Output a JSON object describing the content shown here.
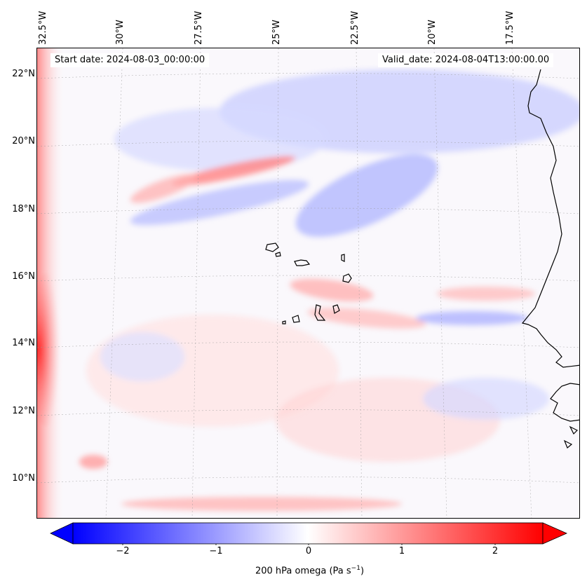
{
  "header": {
    "start_date": "Start date: 2024-08-03_00:00:00",
    "valid_date": "Valid_date: 2024-08-04T13:00:00.00"
  },
  "map": {
    "variable": "200 hPa omega",
    "lon_labels": [
      "32.5°W",
      "30°W",
      "27.5°W",
      "25°W",
      "22.5°W",
      "20°W",
      "17.5°W"
    ],
    "lat_labels": [
      "22°N",
      "20°N",
      "18°N",
      "16°N",
      "14°N",
      "12°N",
      "10°N"
    ],
    "projection": "lambert-conformal",
    "gridlines": true,
    "coastline_color": "#000000"
  },
  "colorbar": {
    "label": "200 hPa omega (Pa s",
    "label_sup": "−1",
    "label_close": ")",
    "ticks": [
      "−2",
      "−1",
      "0",
      "1",
      "2"
    ],
    "range": [
      -2.75,
      2.75
    ],
    "cmap": [
      "#0000ff",
      "#ffffff",
      "#ff0000"
    ],
    "extend": "both"
  }
}
